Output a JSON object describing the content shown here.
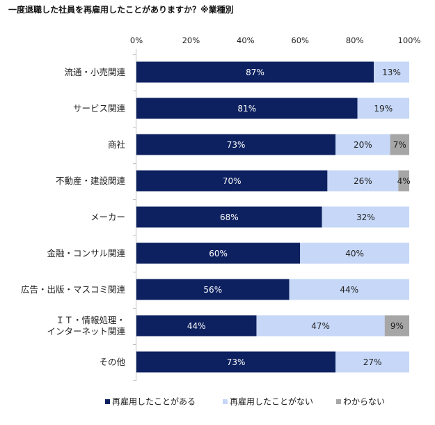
{
  "chart_data": {
    "type": "bar",
    "orientation": "horizontal",
    "stacked": true,
    "percent": true,
    "title": "一度退職した社員を再雇用したことがありますか？※業種別",
    "categories": [
      "流通・小売関連",
      "サービス関連",
      "商社",
      "不動産・建設関連",
      "メーカー",
      "金融・コンサル関連",
      "広告・出版・マスコミ関連",
      "ＩＴ・情報処理・\nインターネット関連",
      "その他"
    ],
    "series": [
      {
        "name": "再雇用したことがある",
        "color": "#0d2160",
        "label_color": "#ffffff",
        "values": [
          87,
          81,
          73,
          70,
          68,
          60,
          56,
          44,
          73
        ],
        "labels": [
          "87%",
          "81%",
          "73%",
          "70%",
          "68%",
          "60%",
          "56%",
          "44%",
          "73%"
        ]
      },
      {
        "name": "再雇用したことがない",
        "color": "#c6d7f7",
        "label_color": "#222222",
        "values": [
          13,
          19,
          20,
          26,
          32,
          40,
          44,
          47,
          27
        ],
        "labels": [
          "13%",
          "19%",
          "20%",
          "26%",
          "32%",
          "40%",
          "44%",
          "47%",
          "27%"
        ]
      },
      {
        "name": "わからない",
        "color": "#a6a6a6",
        "label_color": "#222222",
        "values": [
          0,
          0,
          7,
          4,
          0,
          0,
          0,
          9,
          0
        ],
        "labels": [
          "",
          "",
          "7%",
          "4%",
          "",
          "",
          "",
          "9%",
          ""
        ]
      }
    ],
    "xlim": [
      0,
      100
    ],
    "xticks": [
      "0%",
      "20%",
      "40%",
      "60%",
      "80%",
      "100%"
    ],
    "grid": false,
    "legend_position": "bottom"
  }
}
